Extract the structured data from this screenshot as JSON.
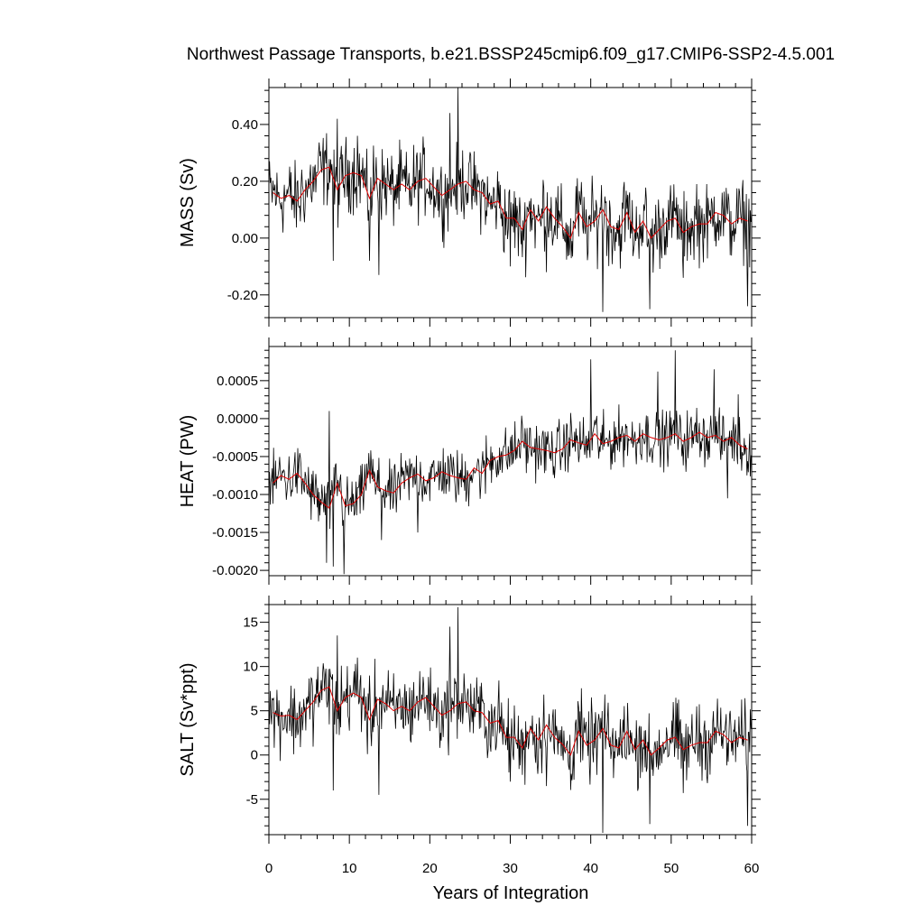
{
  "chart_data": {
    "type": "line",
    "title": "Northwest Passage Transports, b.e21.BSSP245cmip6.f09_g17.CMIP6-SSP2-4.5.001",
    "xlabel": "Years of Integration",
    "xlim": [
      0,
      60
    ],
    "x_ticks": [
      "0",
      "10",
      "20",
      "30",
      "40",
      "50",
      "60"
    ],
    "series_colors": {
      "monthly": "#000000",
      "annual": "#e00000"
    },
    "panels": [
      {
        "ylabel": "MASS (Sv)",
        "ylim": [
          -0.28,
          0.53
        ],
        "y_ticks": [
          0.4,
          0.2,
          0.0,
          -0.2
        ],
        "y_tick_labels": [
          "0.40",
          "0.20",
          "0.00",
          "-0.20"
        ],
        "annual": [
          0.16,
          0.14,
          0.15,
          0.13,
          0.17,
          0.2,
          0.24,
          0.25,
          0.17,
          0.22,
          0.23,
          0.22,
          0.14,
          0.21,
          0.19,
          0.17,
          0.19,
          0.17,
          0.2,
          0.21,
          0.18,
          0.15,
          0.17,
          0.19,
          0.2,
          0.17,
          0.16,
          0.12,
          0.13,
          0.07,
          0.07,
          0.03,
          0.1,
          0.06,
          0.11,
          0.07,
          0.04,
          0.0,
          0.09,
          0.04,
          0.06,
          0.1,
          0.04,
          0.03,
          0.09,
          0.02,
          0.06,
          0.0,
          0.03,
          0.06,
          0.07,
          0.02,
          0.04,
          0.05,
          0.05,
          0.09,
          0.08,
          0.05,
          0.07,
          0.06
        ],
        "monthly_wave": {
          "amp": 0.065,
          "spikes": [
            [
              8.5,
              0.42
            ],
            [
              11.0,
              0.36
            ],
            [
              23.5,
              0.53
            ],
            [
              22.5,
              0.44
            ],
            [
              41.5,
              -0.26
            ],
            [
              59.5,
              -0.24
            ],
            [
              8.0,
              -0.08
            ],
            [
              12.5,
              -0.08
            ],
            [
              13.7,
              -0.13
            ],
            [
              30.0,
              -0.1
            ],
            [
              34.5,
              -0.12
            ],
            [
              47.3,
              -0.25
            ],
            [
              51.5,
              -0.14
            ],
            [
              53.2,
              0.19
            ]
          ]
        }
      },
      {
        "ylabel": "HEAT (PW)",
        "ylim": [
          -0.00207,
          0.00095
        ],
        "y_ticks": [
          0.0005,
          0.0,
          -0.0005,
          -0.001,
          -0.0015,
          -0.002
        ],
        "y_tick_labels": [
          "0.0005",
          "0.0000",
          "-0.0005",
          "-0.0010",
          "-0.0015",
          "-0.0020"
        ],
        "annual": [
          -0.00085,
          -0.00075,
          -0.0008,
          -0.00072,
          -0.00085,
          -0.001,
          -0.0011,
          -0.00118,
          -0.00085,
          -0.00115,
          -0.00112,
          -0.001,
          -0.00068,
          -0.0009,
          -0.00095,
          -0.00098,
          -0.00085,
          -0.00078,
          -0.00073,
          -0.00082,
          -0.00078,
          -0.0007,
          -0.00075,
          -0.00078,
          -0.0008,
          -0.00065,
          -0.00072,
          -0.00055,
          -0.0005,
          -0.00048,
          -0.00042,
          -0.0003,
          -0.00038,
          -0.0004,
          -0.00042,
          -0.00045,
          -0.0004,
          -0.00028,
          -0.00032,
          -0.00035,
          -0.0002,
          -0.00033,
          -0.0003,
          -0.00025,
          -0.00022,
          -0.0003,
          -0.0002,
          -0.00025,
          -0.00028,
          -0.00025,
          -0.0002,
          -0.0003,
          -0.00025,
          -0.00018,
          -0.00025,
          -0.00022,
          -0.0003,
          -0.00025,
          -0.00035,
          -0.0004
        ],
        "monthly_wave": {
          "amp": 0.00018,
          "spikes": [
            [
              7.5,
              0.0001
            ],
            [
              8.0,
              -0.00195
            ],
            [
              9.3,
              -0.00205
            ],
            [
              7.2,
              -0.0019
            ],
            [
              40.0,
              0.00078
            ],
            [
              48.3,
              0.00062
            ],
            [
              50.5,
              0.0009
            ],
            [
              55.3,
              0.00065
            ],
            [
              58.3,
              0.00032
            ],
            [
              57.0,
              -0.00105
            ],
            [
              18.5,
              -0.0015
            ],
            [
              14.0,
              -0.0016
            ]
          ]
        }
      },
      {
        "ylabel": "SALT (Sv*ppt)",
        "ylim": [
          -9.0,
          17.0
        ],
        "y_ticks": [
          15,
          10,
          5,
          0,
          -5
        ],
        "y_tick_labels": [
          "15",
          "10",
          "5",
          "0",
          "-5"
        ],
        "annual": [
          4.8,
          4.4,
          4.5,
          4.0,
          5.0,
          6.0,
          7.3,
          7.7,
          5.0,
          6.5,
          7.0,
          6.5,
          4.0,
          6.3,
          5.8,
          5.0,
          5.5,
          5.0,
          6.0,
          6.5,
          5.5,
          4.5,
          5.0,
          5.8,
          6.0,
          5.0,
          4.8,
          3.6,
          3.9,
          2.0,
          2.0,
          0.8,
          3.0,
          1.7,
          3.4,
          2.0,
          1.2,
          0.0,
          2.7,
          1.1,
          1.7,
          3.0,
          1.1,
          0.8,
          2.7,
          0.6,
          1.7,
          0.0,
          0.8,
          1.7,
          2.0,
          0.6,
          1.1,
          1.4,
          1.4,
          2.7,
          2.3,
          1.4,
          2.0,
          1.7
        ],
        "monthly_wave": {
          "amp": 2.0,
          "spikes": [
            [
              8.5,
              13.5
            ],
            [
              11.0,
              11.0
            ],
            [
              23.5,
              16.7
            ],
            [
              22.5,
              14.5
            ],
            [
              41.5,
              -8.8
            ],
            [
              59.5,
              -8.0
            ],
            [
              8.0,
              -4.0
            ],
            [
              13.7,
              -4.5
            ],
            [
              30.0,
              -3.0
            ],
            [
              34.5,
              -3.5
            ],
            [
              47.3,
              -7.8
            ],
            [
              51.5,
              -4.3
            ],
            [
              53.2,
              5.5
            ]
          ]
        }
      }
    ]
  }
}
